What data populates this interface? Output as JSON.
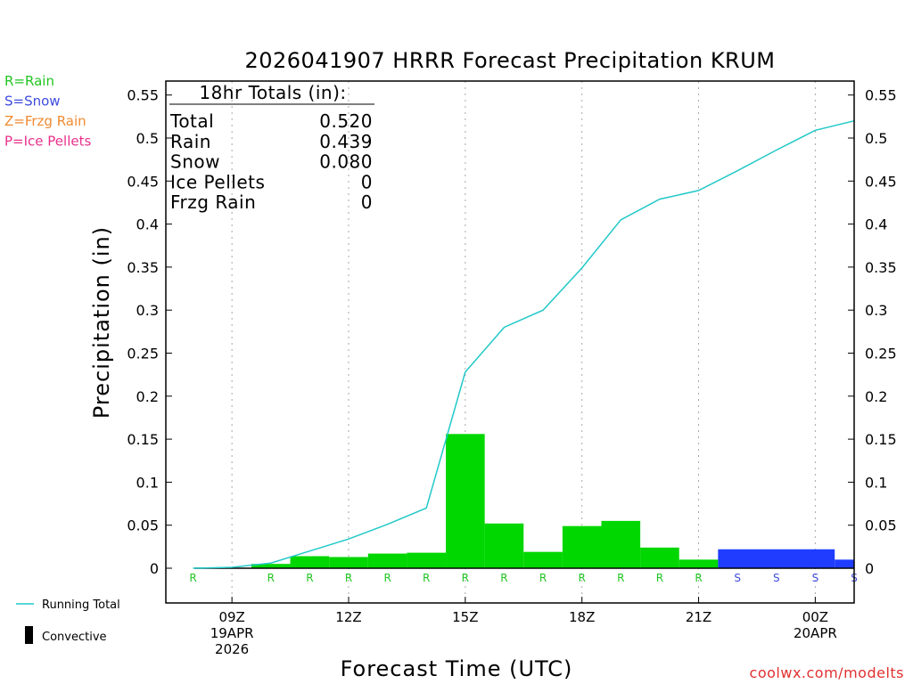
{
  "chart_data": {
    "type": "bar",
    "title": "2026041907 HRRR Forecast Precipitation KRUM",
    "xlabel": "Forecast Time (UTC)",
    "ylabel": "Precipitation (in)",
    "ylim": [
      -0.04,
      0.57
    ],
    "xlim": [
      7.3,
      25.0
    ],
    "yticks": [
      0,
      0.05,
      0.1,
      0.15,
      0.2,
      0.25,
      0.3,
      0.35,
      0.4,
      0.45,
      0.5,
      0.55
    ],
    "ytick_labels": [
      "0",
      "0.05",
      "0.1",
      "0.15",
      "0.2",
      "0.25",
      "0.3",
      "0.35",
      "0.4",
      "0.45",
      "0.5",
      "0.55"
    ],
    "xticks": [
      {
        "hour": 9,
        "lines": [
          "09Z",
          "19APR",
          "2026"
        ]
      },
      {
        "hour": 12,
        "lines": [
          "12Z"
        ]
      },
      {
        "hour": 15,
        "lines": [
          "15Z"
        ]
      },
      {
        "hour": 18,
        "lines": [
          "18Z"
        ]
      },
      {
        "hour": 21,
        "lines": [
          "21Z"
        ]
      },
      {
        "hour": 24,
        "lines": [
          "00Z",
          "20APR"
        ]
      }
    ],
    "grid": "vertical dotted",
    "bars": [
      {
        "start": 8.0,
        "end": 9.0,
        "value": 0.0,
        "type": "R"
      },
      {
        "start": 9.0,
        "end": 9.5,
        "value": 0.0,
        "type": "R"
      },
      {
        "start": 9.5,
        "end": 10.5,
        "value": 0.005,
        "type": "R"
      },
      {
        "start": 10.5,
        "end": 11.5,
        "value": 0.014,
        "type": "R"
      },
      {
        "start": 11.5,
        "end": 12.5,
        "value": 0.013,
        "type": "R"
      },
      {
        "start": 12.5,
        "end": 13.5,
        "value": 0.017,
        "type": "R"
      },
      {
        "start": 13.5,
        "end": 14.5,
        "value": 0.018,
        "type": "R"
      },
      {
        "start": 14.5,
        "end": 15.5,
        "value": 0.156,
        "type": "R"
      },
      {
        "start": 15.5,
        "end": 16.5,
        "value": 0.052,
        "type": "R"
      },
      {
        "start": 16.5,
        "end": 17.5,
        "value": 0.019,
        "type": "R"
      },
      {
        "start": 17.5,
        "end": 18.5,
        "value": 0.049,
        "type": "R"
      },
      {
        "start": 18.5,
        "end": 19.5,
        "value": 0.055,
        "type": "R"
      },
      {
        "start": 19.5,
        "end": 20.5,
        "value": 0.024,
        "type": "R"
      },
      {
        "start": 20.5,
        "end": 21.5,
        "value": 0.01,
        "type": "R"
      },
      {
        "start": 21.5,
        "end": 24.5,
        "value": 0.022,
        "type": "S"
      },
      {
        "start": 24.5,
        "end": 25.0,
        "value": 0.01,
        "type": "S"
      }
    ],
    "type_labels": [
      {
        "hour": 8.0,
        "type": "R"
      },
      {
        "hour": 10.0,
        "type": "R"
      },
      {
        "hour": 11.0,
        "type": "R"
      },
      {
        "hour": 12.0,
        "type": "R"
      },
      {
        "hour": 13.0,
        "type": "R"
      },
      {
        "hour": 14.0,
        "type": "R"
      },
      {
        "hour": 15.0,
        "type": "R"
      },
      {
        "hour": 16.0,
        "type": "R"
      },
      {
        "hour": 17.0,
        "type": "R"
      },
      {
        "hour": 18.0,
        "type": "R"
      },
      {
        "hour": 19.0,
        "type": "R"
      },
      {
        "hour": 20.0,
        "type": "R"
      },
      {
        "hour": 21.0,
        "type": "R"
      },
      {
        "hour": 22.0,
        "type": "S"
      },
      {
        "hour": 23.0,
        "type": "S"
      },
      {
        "hour": 24.0,
        "type": "S"
      },
      {
        "hour": 25.0,
        "type": "S"
      }
    ],
    "running_total": {
      "x": [
        8,
        9,
        10,
        11,
        12,
        13,
        14,
        15,
        16,
        17,
        18,
        19,
        20,
        21,
        22,
        23,
        24,
        25
      ],
      "y": [
        0.0,
        0.001,
        0.006,
        0.02,
        0.034,
        0.051,
        0.07,
        0.228,
        0.28,
        0.3,
        0.349,
        0.405,
        0.429,
        0.439,
        0.462,
        0.486,
        0.509,
        0.52
      ]
    },
    "totals_box": {
      "title": "18hr Totals (in):",
      "rows": [
        {
          "label": "Total",
          "value": "0.520"
        },
        {
          "label": "Rain",
          "value": "0.439"
        },
        {
          "label": "Snow",
          "value": "0.080"
        },
        {
          "label": "Ice Pellets",
          "value": "0"
        },
        {
          "label": "Frzg Rain",
          "value": "0"
        }
      ]
    },
    "legend": [
      {
        "text": "R=Rain",
        "color": "#22c522"
      },
      {
        "text": "S=Snow",
        "color": "#3e4bdf"
      },
      {
        "text": "Z=Frzg Rain",
        "color": "#f08a30"
      },
      {
        "text": "P=Ice Pellets",
        "color": "#e8308a"
      }
    ],
    "bottom_legend": {
      "running_total": "Running Total",
      "convective": "Convective"
    },
    "credit": "coolwx.com/modelts",
    "colors": {
      "rain": "#00d600",
      "snow": "#1f3cff",
      "running_total": "#22c8c8",
      "rain_label": "#22c522",
      "snow_label": "#3e4bdf",
      "credit": "#e03030",
      "grid": "#a8a8a8"
    }
  }
}
